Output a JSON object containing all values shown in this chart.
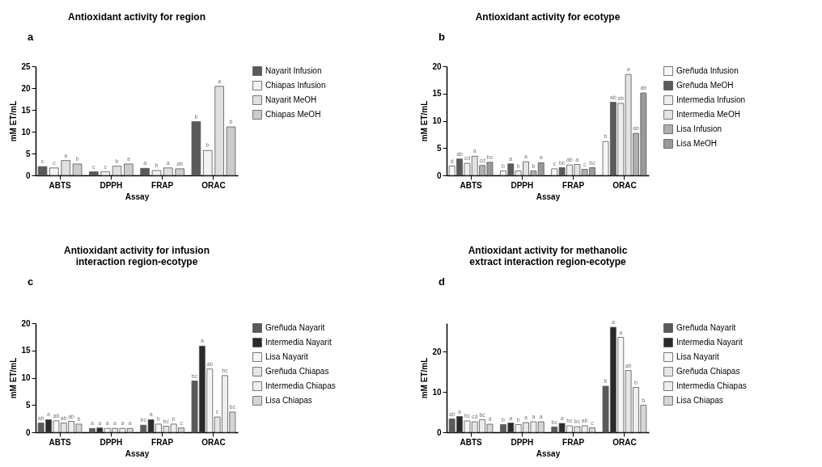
{
  "chart_data": [
    {
      "type": "bar",
      "title": "Antioxidant activity for region",
      "annotations": [
        "a"
      ],
      "xlabel": "Assay",
      "ylabel": "mM ET/mL",
      "categories": [
        "ABTS",
        "DPPH",
        "FRAP",
        "ORAC"
      ],
      "ylim": [
        0,
        25
      ],
      "yticks": [
        0,
        5,
        10,
        15,
        20,
        25
      ],
      "legend": "right",
      "series": [
        {
          "name": "Nayarit Infusion",
          "color": "#5a5a5a",
          "values": [
            2.0,
            0.8,
            1.6,
            12.3
          ],
          "value_labels": [
            "c",
            "c",
            "a",
            "b"
          ]
        },
        {
          "name": "Chiapas Infusion",
          "color": "#f2f2f2",
          "values": [
            1.7,
            0.8,
            1.1,
            5.7
          ],
          "value_labels": [
            "c",
            "c",
            "b",
            "b"
          ]
        },
        {
          "name": "Nayarit MeOH",
          "color": "#e0e0e0",
          "values": [
            3.4,
            2.1,
            1.7,
            20.4
          ],
          "value_labels": [
            "a",
            "b",
            "a",
            "a"
          ]
        },
        {
          "name": "Chiapas MeOH",
          "color": "#cccccc",
          "values": [
            2.6,
            2.6,
            1.5,
            11.1
          ],
          "value_labels": [
            "b",
            "a",
            "ab",
            "b"
          ]
        }
      ]
    },
    {
      "type": "bar",
      "title": "Antioxidant activity for ecotype",
      "annotations": [
        "b"
      ],
      "xlabel": "Assay",
      "ylabel": "mM ET/mL",
      "categories": [
        "ABTS",
        "DPPH",
        "FRAP",
        "ORAC"
      ],
      "ylim": [
        0,
        20
      ],
      "yticks": [
        0,
        5,
        10,
        15,
        20
      ],
      "legend": "right",
      "series": [
        {
          "name": "Greñuda Infusion",
          "color": "#f7f7f7",
          "values": [
            1.7,
            0.8,
            1.2,
            6.2
          ],
          "value_labels": [
            "d",
            "b",
            "c",
            "b"
          ]
        },
        {
          "name": "Greñuda MeOH",
          "color": "#5a5a5a",
          "values": [
            3.0,
            2.1,
            1.4,
            13.4
          ],
          "value_labels": [
            "ab",
            "a",
            "bc",
            "ab"
          ]
        },
        {
          "name": "Intermedia Infusion",
          "color": "#eeeeee",
          "values": [
            2.2,
            0.8,
            1.9,
            13.2
          ],
          "value_labels": [
            "cd",
            "b",
            "ab",
            "ab"
          ]
        },
        {
          "name": "Intermedia MeOH",
          "color": "#e3e3e3",
          "values": [
            3.5,
            2.5,
            2.0,
            18.5
          ],
          "value_labels": [
            "a",
            "a",
            "a",
            "a"
          ]
        },
        {
          "name": "Lisa Infusion",
          "color": "#b0b0b0",
          "values": [
            1.8,
            0.8,
            1.1,
            7.7
          ],
          "value_labels": [
            "cd",
            "b",
            "c",
            "ab"
          ]
        },
        {
          "name": "Lisa MeOH",
          "color": "#9a9a9a",
          "values": [
            2.4,
            2.3,
            1.4,
            15.1
          ],
          "value_labels": [
            "bc",
            "a",
            "bc",
            "ab"
          ]
        }
      ]
    },
    {
      "type": "bar",
      "title": "Antioxidant activity for infusion interaction region-ecotype",
      "annotations": [
        "c"
      ],
      "xlabel": "Assay",
      "ylabel": "mM ET/mL",
      "categories": [
        "ABTS",
        "DPPH",
        "FRAP",
        "ORAC"
      ],
      "ylim": [
        0,
        20
      ],
      "yticks": [
        0,
        5,
        10,
        15,
        20
      ],
      "legend": "right",
      "series": [
        {
          "name": "Greñuda Nayarit",
          "color": "#5a5a5a",
          "values": [
            1.7,
            0.7,
            1.3,
            9.4
          ],
          "value_labels": [
            "ab",
            "a",
            "bc",
            "bc"
          ]
        },
        {
          "name": "Intermedia Nayarit",
          "color": "#2a2a2a",
          "values": [
            2.3,
            0.8,
            2.3,
            15.8
          ],
          "value_labels": [
            "a",
            "a",
            "a",
            "a"
          ]
        },
        {
          "name": "Lisa Nayarit",
          "color": "#f5f5f5",
          "values": [
            2.1,
            0.7,
            1.5,
            11.6
          ],
          "value_labels": [
            "ab",
            "a",
            "b",
            "ab"
          ]
        },
        {
          "name": "Greñuda Chiapas",
          "color": "#e6e6e6",
          "values": [
            1.7,
            0.7,
            1.1,
            2.8
          ],
          "value_labels": [
            "ab",
            "a",
            "bc",
            "c"
          ]
        },
        {
          "name": "Intermedia Chiapas",
          "color": "#eeeeee",
          "values": [
            2.0,
            0.7,
            1.5,
            10.4
          ],
          "value_labels": [
            "ab",
            "a",
            "b",
            "bc"
          ]
        },
        {
          "name": "Lisa Chiapas",
          "color": "#d6d6d6",
          "values": [
            1.5,
            0.7,
            0.8,
            3.7
          ],
          "value_labels": [
            "b",
            "a",
            "c",
            "bc"
          ]
        }
      ]
    },
    {
      "type": "bar",
      "title": "Antioxidant activity for methanolic extract interaction region-ecotype",
      "annotations": [
        "d"
      ],
      "xlabel": "Assay",
      "ylabel": "mM ET/mL",
      "categories": [
        "ABTS",
        "DPPH",
        "FRAP",
        "ORAC"
      ],
      "ylim": [
        0,
        27
      ],
      "yticks": [
        0,
        10,
        20
      ],
      "legend": "right",
      "series": [
        {
          "name": "Greñuda Nayarit",
          "color": "#5a5a5a",
          "values": [
            3.3,
            1.9,
            1.3,
            11.4
          ],
          "value_labels": [
            "ab",
            "b",
            "bc",
            "b"
          ]
        },
        {
          "name": "Intermedia Nayarit",
          "color": "#2a2a2a",
          "values": [
            3.9,
            2.3,
            2.2,
            26.0
          ],
          "value_labels": [
            "a",
            "a",
            "a",
            "a"
          ]
        },
        {
          "name": "Lisa Nayarit",
          "color": "#f5f5f5",
          "values": [
            2.8,
            1.9,
            1.6,
            23.5
          ],
          "value_labels": [
            "bc",
            "b",
            "bc",
            "a"
          ]
        },
        {
          "name": "Greñuda Chiapas",
          "color": "#e6e6e6",
          "values": [
            2.6,
            2.4,
            1.4,
            15.3
          ],
          "value_labels": [
            "cd",
            "a",
            "bc",
            "ab"
          ]
        },
        {
          "name": "Intermedia Chiapas",
          "color": "#eeeeee",
          "values": [
            3.1,
            2.6,
            1.6,
            11.1
          ],
          "value_labels": [
            "bc",
            "a",
            "ab",
            "b"
          ]
        },
        {
          "name": "Lisa Chiapas",
          "color": "#d6d6d6",
          "values": [
            2.0,
            2.6,
            1.1,
            6.7
          ],
          "value_labels": [
            "d",
            "a",
            "c",
            "b"
          ]
        }
      ]
    }
  ]
}
